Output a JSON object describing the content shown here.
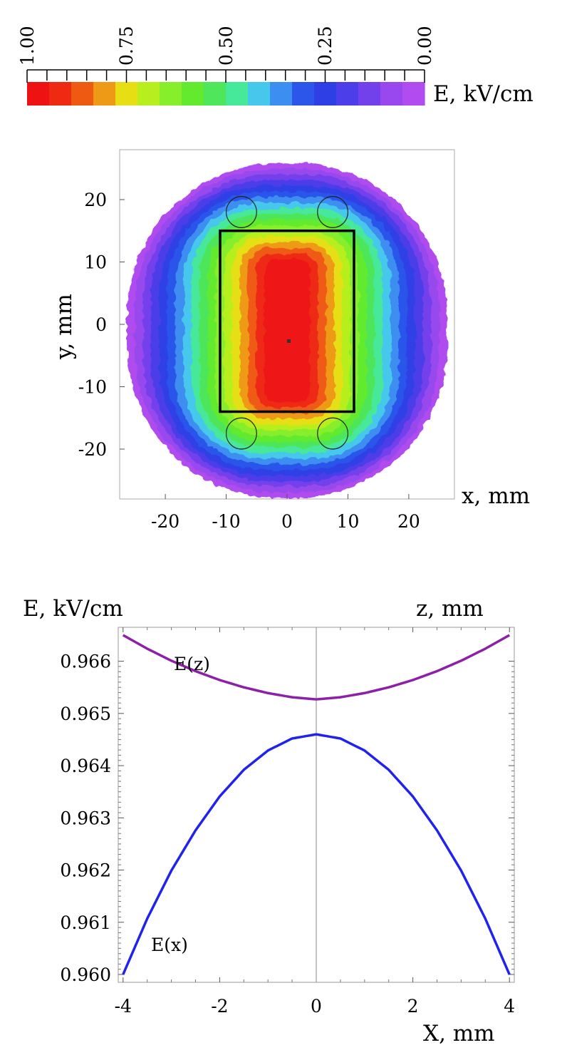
{
  "chart_data": [
    {
      "type": "colorbar",
      "label": "E, kV/cm",
      "range": [
        1.0,
        0.0
      ],
      "tick_labels": [
        "1.00",
        "0.75",
        "0.50",
        "0.25",
        "0.00"
      ],
      "colors": [
        "#ee1212",
        "#ee2a12",
        "#ef5a12",
        "#ee9a16",
        "#e7df14",
        "#b6ef1d",
        "#86ee2a",
        "#62ea2f",
        "#4ee65a",
        "#46e89a",
        "#45c8ec",
        "#3c8ef0",
        "#2c55ea",
        "#2f3fe6",
        "#4c3ee8",
        "#7341ec",
        "#9848ee",
        "#b04cf0"
      ]
    },
    {
      "type": "heatmap",
      "title": "",
      "xlabel": "x, mm",
      "ylabel": "y, mm",
      "xlim": [
        -27.5,
        27.5
      ],
      "ylim": [
        -28,
        28
      ],
      "x_ticks": [
        -20,
        -10,
        0,
        10,
        20
      ],
      "x_tick_labels": [
        "-20",
        "-10",
        "0",
        "10",
        "20"
      ],
      "y_ticks": [
        20,
        10,
        0,
        -10,
        -20
      ],
      "y_tick_labels": [
        "20",
        "10",
        "0",
        "-10",
        "-20"
      ],
      "field_center": [
        0,
        -1
      ],
      "annotations": [
        {
          "kind": "rectangle",
          "x": [
            -11,
            11
          ],
          "y": [
            -14,
            15
          ]
        },
        {
          "kind": "circle",
          "cx": -7.5,
          "cy": 18,
          "r": 2.5
        },
        {
          "kind": "circle",
          "cx": 7.5,
          "cy": 18,
          "r": 2.5
        },
        {
          "kind": "circle",
          "cx": -7.5,
          "cy": -17.5,
          "r": 2.5
        },
        {
          "kind": "circle",
          "cx": 7.5,
          "cy": -17.5,
          "r": 2.5
        }
      ]
    },
    {
      "type": "line",
      "title": "",
      "xlabel": "X, mm",
      "ylabel": "E, kV/cm",
      "secondary_label": "z, mm",
      "xlim": [
        -4.1,
        4.1
      ],
      "ylim": [
        0.95985,
        0.96665
      ],
      "x_ticks": [
        -4,
        -2,
        0,
        2,
        4
      ],
      "x_tick_labels": [
        "-4",
        "-2",
        "0",
        "2",
        "4"
      ],
      "y_ticks": [
        0.966,
        0.965,
        0.964,
        0.963,
        0.962,
        0.961,
        0.96
      ],
      "y_tick_labels": [
        "0.966",
        "0.965",
        "0.964",
        "0.963",
        "0.962",
        "0.961",
        "0.960"
      ],
      "x": [
        -4,
        -3.5,
        -3,
        -2.5,
        -2,
        -1.5,
        -1,
        -0.5,
        0,
        0.5,
        1,
        1.5,
        2,
        2.5,
        3,
        3.5,
        4
      ],
      "series": [
        {
          "name": "E(z)",
          "color": "#8e1fa8",
          "values": [
            0.9665,
            0.96624,
            0.96601,
            0.96581,
            0.96564,
            0.9655,
            0.96539,
            0.96531,
            0.96527,
            0.96531,
            0.96539,
            0.9655,
            0.96564,
            0.96581,
            0.96601,
            0.96624,
            0.9665
          ]
        },
        {
          "name": "E(x)",
          "color": "#2222ee",
          "values": [
            0.96,
            0.96107,
            0.96199,
            0.96276,
            0.96341,
            0.96392,
            0.96429,
            0.96452,
            0.9646,
            0.96452,
            0.96429,
            0.96392,
            0.96341,
            0.96276,
            0.96199,
            0.96107,
            0.96
          ]
        }
      ]
    }
  ]
}
